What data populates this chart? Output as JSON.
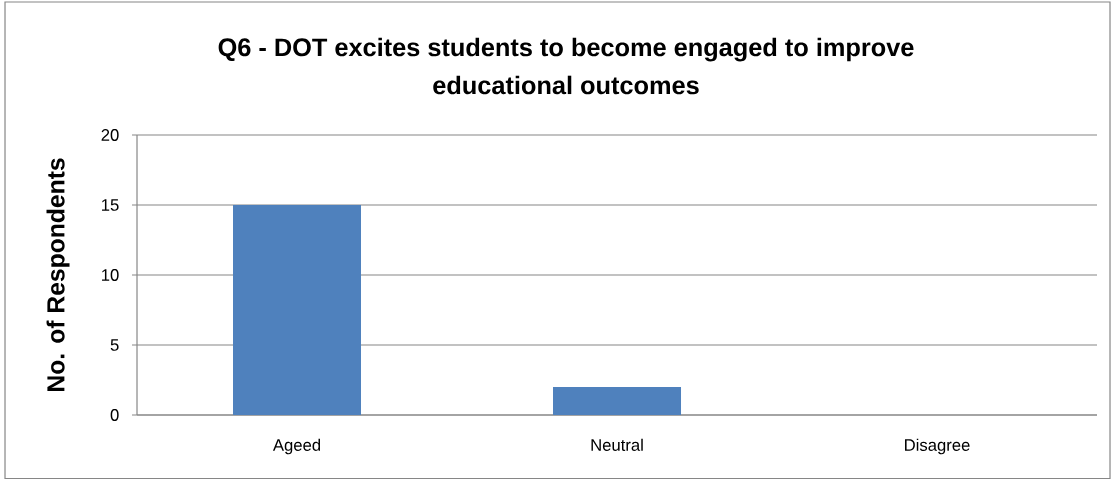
{
  "chart_data": {
    "type": "bar",
    "title": "Q6 - DOT excites students to become engaged to improve educational outcomes",
    "ylabel": "No. of Respondents",
    "categories": [
      "Ageed",
      "Neutral",
      "Disagree"
    ],
    "values": [
      15,
      2,
      0
    ],
    "color": "#4f81bd",
    "ylim": [
      0,
      20
    ],
    "yticks": [
      0,
      5,
      10,
      15,
      20
    ],
    "grid": "y"
  }
}
